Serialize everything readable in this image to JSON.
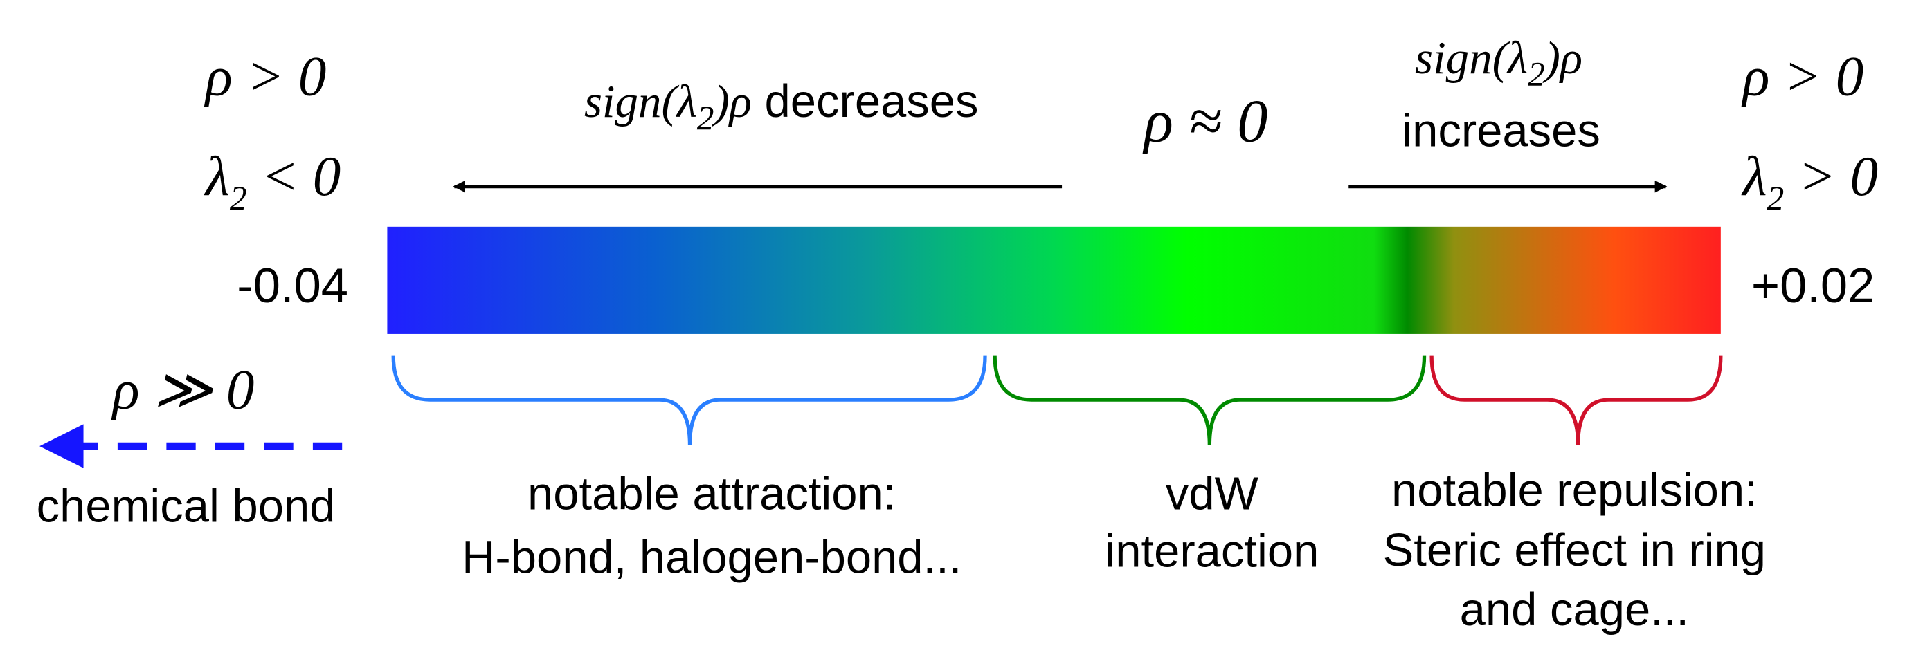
{
  "left_conditions": {
    "rho": {
      "symbol": "ρ",
      "relation": "> 0"
    },
    "lambda": {
      "symbol": "λ",
      "subscript": "2",
      "relation": "< 0"
    }
  },
  "right_conditions": {
    "rho": {
      "symbol": "ρ",
      "relation": "> 0"
    },
    "lambda": {
      "symbol": "λ",
      "subscript": "2",
      "relation": "> 0"
    }
  },
  "left_arrow": {
    "expr_before": "sign(λ",
    "expr_subscript": "2",
    "expr_after": ")ρ",
    "word": "decreases"
  },
  "middle": {
    "label": "ρ ≈ 0"
  },
  "right_arrow": {
    "expr_before": "sign(λ",
    "expr_subscript": "2",
    "expr_after": ")ρ",
    "word": "increases"
  },
  "scale": {
    "min_label": "-0.04",
    "max_label": "+0.02"
  },
  "chemical_bond": {
    "condition": "ρ ≫ 0",
    "label": "chemical bond"
  },
  "regions": [
    {
      "lines": [
        "notable attraction:",
        "H-bond, halogen-bond..."
      ]
    },
    {
      "lines": [
        "vdW",
        "interaction"
      ]
    },
    {
      "lines": [
        "notable repulsion:",
        "Steric effect in ring",
        "and cage..."
      ]
    }
  ]
}
